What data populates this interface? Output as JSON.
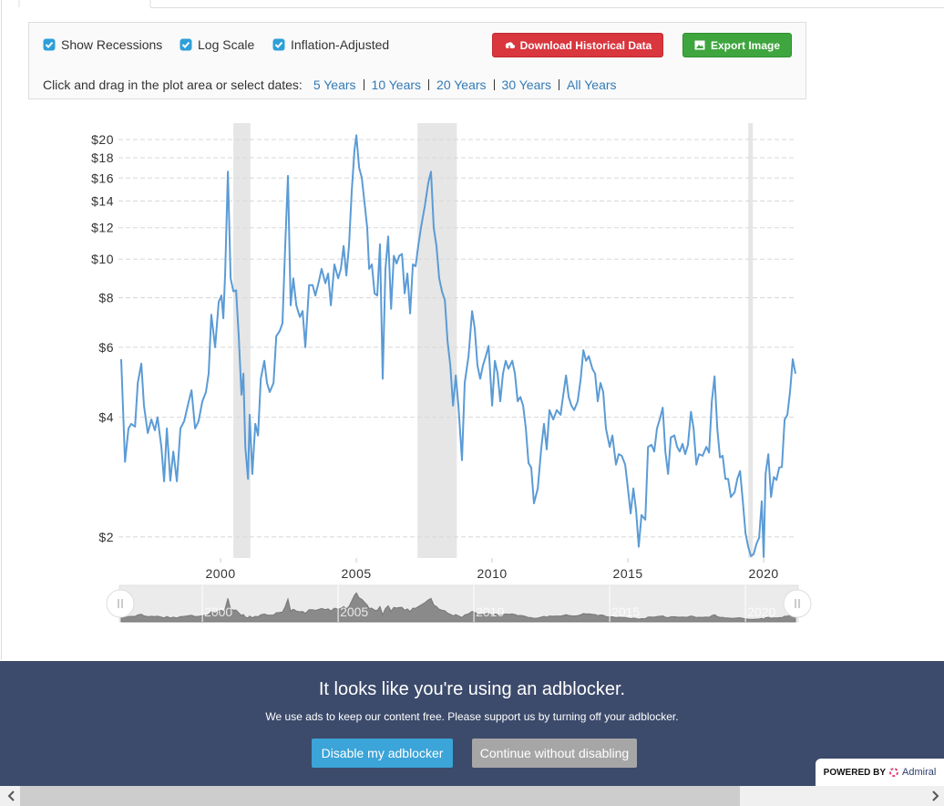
{
  "controls": {
    "checkboxes": [
      {
        "label": "Show Recessions",
        "checked": true
      },
      {
        "label": "Log Scale",
        "checked": true
      },
      {
        "label": "Inflation-Adjusted",
        "checked": true
      }
    ],
    "buttons": [
      "Download Historical Data",
      "Export Image"
    ],
    "prompt": "Click and drag in the plot area or select dates:",
    "ranges": [
      "5 Years",
      "10 Years",
      "20 Years",
      "30 Years",
      "All Years"
    ]
  },
  "chart_data": {
    "type": "line",
    "log_scale": true,
    "grid": true,
    "color": "#5b9bd5",
    "xlim": [
      1996.34,
      2021.17
    ],
    "xticks": [
      2000,
      2005,
      2010,
      2015,
      2020
    ],
    "ylim": [
      1.77,
      22
    ],
    "yticks": [
      {
        "value": 2,
        "label": "$2"
      },
      {
        "value": 4,
        "label": "$4"
      },
      {
        "value": 6,
        "label": "$6"
      },
      {
        "value": 8,
        "label": "$8"
      },
      {
        "value": 10,
        "label": "$10"
      },
      {
        "value": 12,
        "label": "$12"
      },
      {
        "value": 14,
        "label": "$14"
      },
      {
        "value": 16,
        "label": "$16"
      },
      {
        "value": 18,
        "label": "$18"
      },
      {
        "value": 20,
        "label": "$20"
      }
    ],
    "recessions": [
      [
        2000.47,
        2001.1
      ],
      [
        2007.25,
        2008.7
      ],
      [
        2019.43,
        2019.6
      ]
    ],
    "x": [
      1996.34,
      1996.48,
      1996.61,
      1996.71,
      1996.85,
      1996.95,
      1997.08,
      1997.18,
      1997.32,
      1997.45,
      1997.58,
      1997.68,
      1997.82,
      1997.92,
      1998.02,
      1998.15,
      1998.26,
      1998.39,
      1998.52,
      1998.66,
      1998.83,
      1998.93,
      1999.06,
      1999.19,
      1999.33,
      1999.46,
      1999.56,
      1999.66,
      1999.8,
      1999.93,
      2000.03,
      2000.1,
      2000.17,
      2000.27,
      2000.37,
      2000.47,
      2000.57,
      2000.67,
      2000.77,
      2000.84,
      2000.91,
      2001.01,
      2001.07,
      2001.17,
      2001.28,
      2001.38,
      2001.48,
      2001.61,
      2001.71,
      2001.81,
      2001.95,
      2002.05,
      2002.18,
      2002.28,
      2002.38,
      2002.48,
      2002.58,
      2002.68,
      2002.79,
      2002.92,
      2003.02,
      2003.12,
      2003.26,
      2003.39,
      2003.49,
      2003.62,
      2003.72,
      2003.86,
      2003.96,
      2004.06,
      2004.19,
      2004.33,
      2004.43,
      2004.53,
      2004.63,
      2004.73,
      2004.83,
      2004.93,
      2005.0,
      2005.1,
      2005.2,
      2005.3,
      2005.4,
      2005.47,
      2005.57,
      2005.67,
      2005.77,
      2005.87,
      2005.97,
      2006.07,
      2006.17,
      2006.28,
      2006.38,
      2006.48,
      2006.58,
      2006.68,
      2006.78,
      2006.88,
      2006.98,
      2007.08,
      2007.18,
      2007.28,
      2007.38,
      2007.52,
      2007.65,
      2007.75,
      2007.85,
      2007.95,
      2008.05,
      2008.15,
      2008.26,
      2008.36,
      2008.46,
      2008.56,
      2008.66,
      2008.76,
      2008.89,
      2008.99,
      2009.13,
      2009.26,
      2009.36,
      2009.46,
      2009.56,
      2009.66,
      2009.77,
      2009.87,
      2010.0,
      2010.1,
      2010.2,
      2010.3,
      2010.4,
      2010.5,
      2010.6,
      2010.74,
      2010.84,
      2010.94,
      2011.04,
      2011.14,
      2011.24,
      2011.34,
      2011.44,
      2011.54,
      2011.68,
      2011.81,
      2011.91,
      2012.01,
      2012.11,
      2012.25,
      2012.38,
      2012.52,
      2012.62,
      2012.72,
      2012.82,
      2012.92,
      2013.02,
      2013.15,
      2013.26,
      2013.36,
      2013.46,
      2013.56,
      2013.69,
      2013.79,
      2013.89,
      2013.99,
      2014.09,
      2014.19,
      2014.33,
      2014.43,
      2014.56,
      2014.66,
      2014.77,
      2014.9,
      2015.0,
      2015.1,
      2015.2,
      2015.3,
      2015.4,
      2015.5,
      2015.64,
      2015.74,
      2015.87,
      2015.97,
      2016.07,
      2016.17,
      2016.28,
      2016.38,
      2016.48,
      2016.58,
      2016.71,
      2016.81,
      2016.91,
      2017.01,
      2017.11,
      2017.21,
      2017.32,
      2017.42,
      2017.52,
      2017.62,
      2017.75,
      2017.89,
      2017.99,
      2018.09,
      2018.19,
      2018.29,
      2018.39,
      2018.49,
      2018.59,
      2018.69,
      2018.79,
      2018.93,
      2019.03,
      2019.13,
      2019.23,
      2019.33,
      2019.43,
      2019.53,
      2019.63,
      2019.73,
      2019.83,
      2019.93,
      2020.0,
      2020.07,
      2020.17,
      2020.27,
      2020.37,
      2020.47,
      2020.57,
      2020.67,
      2020.77,
      2020.87,
      2020.97,
      2021.07,
      2021.17
    ],
    "values": [
      5.6,
      3.09,
      3.75,
      3.85,
      3.79,
      4.88,
      5.46,
      4.28,
      3.65,
      3.95,
      3.71,
      4.0,
      3.37,
      2.76,
      3.75,
      2.77,
      3.28,
      2.76,
      3.75,
      3.91,
      4.39,
      4.68,
      3.75,
      3.91,
      4.39,
      4.63,
      5.15,
      7.25,
      6.0,
      7.8,
      8.1,
      7.1,
      9.2,
      16.6,
      8.95,
      8.3,
      8.35,
      6.4,
      4.56,
      5.15,
      3.37,
      2.8,
      4.06,
      2.88,
      3.85,
      3.6,
      5.0,
      5.55,
      4.88,
      4.63,
      4.88,
      6.4,
      6.6,
      6.9,
      10.8,
      16.2,
      7.65,
      8.95,
      7.65,
      7.15,
      7.4,
      6.0,
      8.6,
      8.6,
      8.1,
      8.8,
      9.45,
      8.7,
      9.2,
      7.65,
      9.7,
      8.95,
      9.45,
      10.8,
      9.1,
      10.8,
      14.8,
      18.8,
      20.5,
      17.0,
      16.0,
      13.9,
      12.0,
      9.45,
      9.7,
      8.2,
      8.1,
      10.9,
      5.0,
      9.45,
      11.4,
      7.5,
      10.2,
      9.75,
      10.2,
      10.3,
      8.2,
      9.2,
      7.3,
      9.7,
      9.6,
      10.8,
      12.0,
      13.6,
      15.6,
      16.6,
      12.0,
      10.8,
      8.95,
      8.3,
      7.9,
      6.2,
      5.4,
      4.28,
      5.1,
      4.28,
      3.12,
      4.88,
      5.7,
      7.4,
      6.7,
      5.4,
      5.0,
      5.4,
      5.7,
      6.05,
      4.28,
      5.55,
      5.15,
      4.39,
      5.15,
      5.55,
      5.3,
      5.55,
      5.15,
      4.39,
      4.5,
      4.28,
      3.75,
      3.07,
      2.99,
      2.43,
      2.65,
      3.34,
      3.85,
      3.32,
      4.17,
      3.95,
      4.17,
      4.06,
      4.56,
      5.1,
      4.5,
      4.28,
      4.17,
      4.39,
      5.0,
      5.9,
      5.55,
      5.7,
      5.3,
      5.15,
      4.39,
      4.88,
      4.63,
      3.75,
      3.37,
      3.6,
      3.04,
      3.23,
      3.2,
      3.04,
      2.65,
      2.29,
      2.65,
      2.33,
      1.89,
      2.27,
      2.21,
      3.37,
      3.41,
      3.28,
      3.75,
      3.95,
      4.23,
      3.28,
      2.88,
      3.56,
      3.6,
      3.37,
      3.28,
      3.43,
      3.23,
      3.41,
      4.13,
      3.75,
      3.04,
      3.23,
      3.2,
      3.37,
      3.26,
      4.39,
      5.07,
      3.75,
      3.17,
      3.2,
      2.8,
      2.8,
      2.52,
      2.59,
      2.8,
      2.93,
      2.46,
      2.04,
      1.89,
      1.79,
      1.81,
      1.92,
      1.99,
      2.46,
      1.78,
      2.88,
      3.23,
      2.52,
      2.83,
      2.78,
      2.99,
      3.0,
      3.95,
      4.06,
      4.63,
      5.6,
      5.15
    ]
  },
  "banner": {
    "title": "It looks like you're using an adblocker.",
    "text": "We use ads to keep our content free. Please support us by turning off your adblocker.",
    "buttons": [
      "Disable my adblocker",
      "Continue without disabling"
    ],
    "powered_by": "POWERED BY",
    "brand": "Admiral"
  }
}
